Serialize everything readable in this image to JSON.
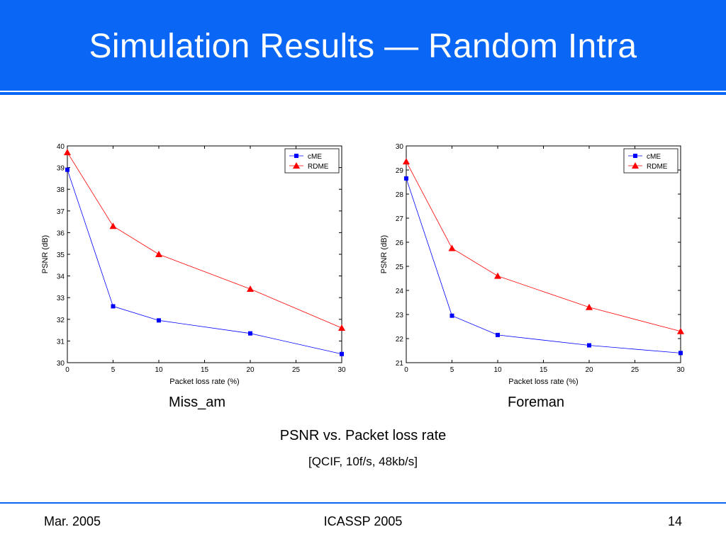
{
  "slide": {
    "title": "Simulation Results — Random Intra",
    "main_caption": "PSNR vs. Packet loss rate",
    "sub_caption": "[QCIF, 10f/s, 48kb/s]",
    "footer": {
      "left": "Mar. 2005",
      "center": "ICASSP 2005",
      "right": "14"
    },
    "colors": {
      "accent": "#0a66f5",
      "cME": "#0000ff",
      "RDME": "#ff0000"
    }
  },
  "chart_data": [
    {
      "type": "line",
      "title": "Miss_am",
      "xlabel": "Packet loss rate (%)",
      "ylabel": "PSNR (dB)",
      "x": [
        0,
        5,
        10,
        20,
        30
      ],
      "xlim": [
        0,
        30
      ],
      "ylim": [
        30,
        40
      ],
      "xticks": [
        0,
        5,
        10,
        15,
        20,
        25,
        30
      ],
      "yticks": [
        30,
        31,
        32,
        33,
        34,
        35,
        36,
        37,
        38,
        39,
        40
      ],
      "grid": false,
      "legend": "top-right",
      "series": [
        {
          "name": "cME",
          "marker": "square",
          "color": "#0000ff",
          "values": [
            38.9,
            32.6,
            31.95,
            31.35,
            30.4
          ]
        },
        {
          "name": "RDME",
          "marker": "triangle",
          "color": "#ff0000",
          "values": [
            39.7,
            36.3,
            35.0,
            33.4,
            31.6
          ]
        }
      ]
    },
    {
      "type": "line",
      "title": "Foreman",
      "xlabel": "Packet loss rate (%)",
      "ylabel": "PSNR (dB)",
      "x": [
        0,
        5,
        10,
        20,
        30
      ],
      "xlim": [
        0,
        30
      ],
      "ylim": [
        21,
        30
      ],
      "xticks": [
        0,
        5,
        10,
        15,
        20,
        25,
        30
      ],
      "yticks": [
        21,
        22,
        23,
        24,
        25,
        26,
        27,
        28,
        29,
        30
      ],
      "grid": false,
      "legend": "top-right",
      "series": [
        {
          "name": "cME",
          "marker": "square",
          "color": "#0000ff",
          "values": [
            28.65,
            22.95,
            22.15,
            21.72,
            21.4
          ]
        },
        {
          "name": "RDME",
          "marker": "triangle",
          "color": "#ff0000",
          "values": [
            29.35,
            25.75,
            24.6,
            23.3,
            22.3
          ]
        }
      ]
    }
  ]
}
